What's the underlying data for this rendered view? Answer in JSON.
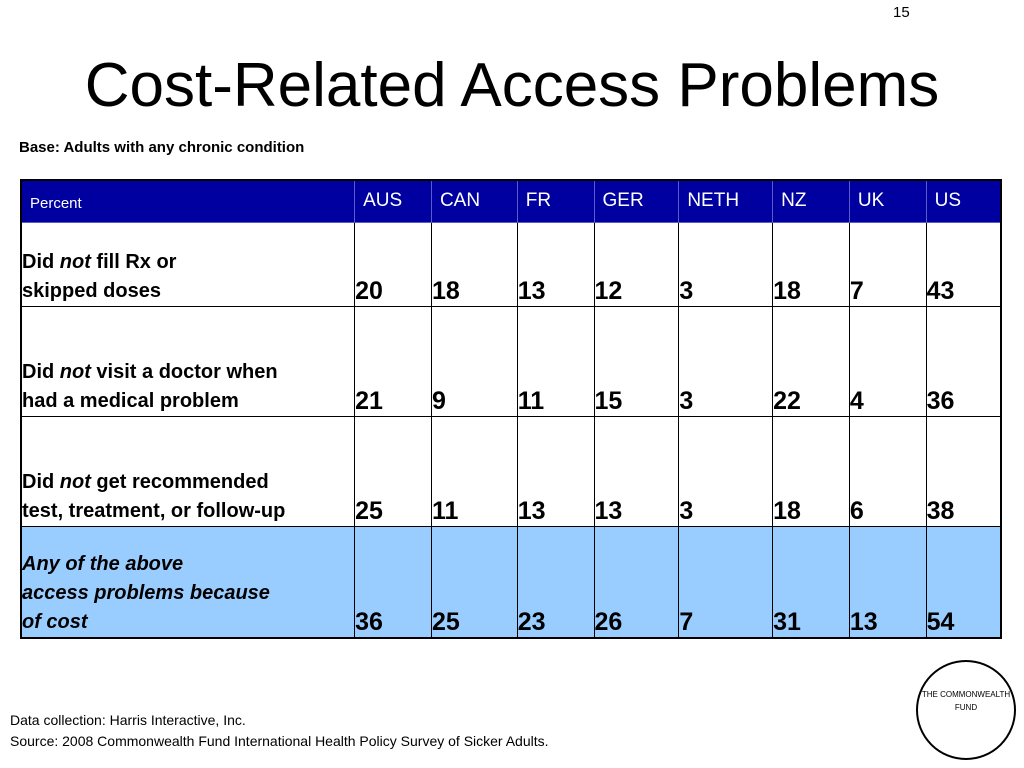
{
  "page_number": "15",
  "title": "Cost-Related Access Problems",
  "base_note": "Base: Adults with any chronic condition",
  "table": {
    "header_label": "Percent",
    "columns": [
      "AUS",
      "CAN",
      "FR",
      "GER",
      "NETH",
      "NZ",
      "UK",
      "US"
    ],
    "rows": [
      {
        "label_prefix": "Did ",
        "label_em": "not",
        "label_rest": " fill Rx or",
        "label_line2": "skipped doses",
        "values": [
          "20",
          "18",
          "13",
          "12",
          "3",
          "18",
          "7",
          "43"
        ]
      },
      {
        "label_prefix": "Did ",
        "label_em": "not",
        "label_rest": " visit a doctor when",
        "label_line2": "had a medical problem",
        "values": [
          "21",
          "9",
          "11",
          "15",
          "3",
          "22",
          "4",
          "36"
        ]
      },
      {
        "label_prefix": "Did ",
        "label_em": "not",
        "label_rest": " get recommended",
        "label_line2": "test, treatment, or follow-up",
        "values": [
          "25",
          "11",
          "13",
          "13",
          "3",
          "18",
          "6",
          "38"
        ]
      },
      {
        "label_line1": "Any of the above",
        "label_line2": "access problems because",
        "label_line3": "of cost",
        "values": [
          "36",
          "25",
          "23",
          "26",
          "7",
          "31",
          "13",
          "54"
        ]
      }
    ]
  },
  "footnotes": {
    "data_collection": "Data collection: Harris Interactive, Inc.",
    "source": "Source: 2008 Commonwealth Fund International Health Policy Survey of Sicker Adults."
  },
  "logo": {
    "line1": "THE COMMONWEALTH",
    "line2": "FUND"
  },
  "colors": {
    "header_bg": "#0000a0",
    "highlight_row_bg": "#99ccff"
  }
}
